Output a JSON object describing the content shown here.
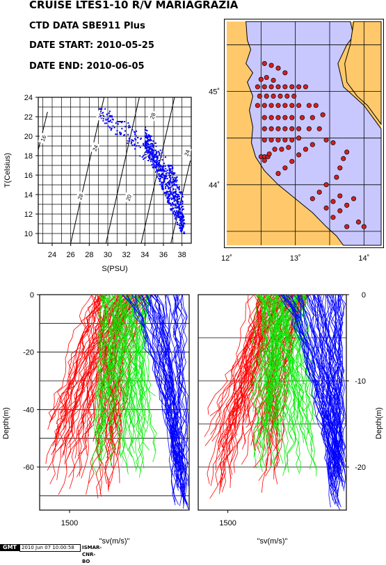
{
  "header": {
    "title": "CRUISE LTES1-10 R/V MARIAGRAZIA",
    "line1": "CTD DATA SBE911 Plus",
    "line2": "DATE START: 2010-05-25",
    "line3": "DATE END:   2010-06-05"
  },
  "footer": {
    "logo_text": "GMT",
    "timestamp": "2010 Jun 07 10:00:58",
    "institute": "ISMAR-CNR-BO"
  },
  "chart_data": [
    {
      "type": "scatter",
      "name_key": "ts_diagram",
      "xlabel": "S(PSU)",
      "ylabel": "T(Celsius)",
      "xlim": [
        22.5,
        39.0
      ],
      "ylim": [
        9.0,
        24.0
      ],
      "xticks": [
        24,
        26,
        28,
        30,
        32,
        34,
        36,
        38
      ],
      "yticks": [
        10,
        12,
        14,
        16,
        18,
        20,
        22,
        24
      ],
      "grid": true,
      "point_color": "#0000ff",
      "isopycnal_labels": [
        "16",
        "20",
        "24",
        "28",
        "20",
        "24",
        "28",
        "20",
        "24",
        "28"
      ],
      "clusters": [
        {
          "s": [
            29,
            31.5
          ],
          "t": [
            20.2,
            22.8
          ],
          "n": 55
        },
        {
          "s": [
            31,
            35
          ],
          "t": [
            17.5,
            21.5
          ],
          "n": 90
        },
        {
          "s": [
            34,
            37.5
          ],
          "t": [
            15,
            20
          ],
          "n": 120
        },
        {
          "s": [
            36.5,
            38.2
          ],
          "t": [
            12.5,
            17
          ],
          "n": 90
        },
        {
          "s": [
            37.5,
            38.3
          ],
          "t": [
            10,
            14
          ],
          "n": 40
        }
      ]
    },
    {
      "type": "map",
      "name_key": "station_map",
      "xlim": [
        12.0,
        14.25
      ],
      "ylim": [
        43.35,
        45.75
      ],
      "xtick_labels": [
        "12˚",
        "13˚",
        "14˚"
      ],
      "xticks": [
        12,
        13,
        14
      ],
      "ytick_labels": [
        "44˚",
        "45˚"
      ],
      "yticks": [
        44,
        45
      ],
      "land_color": "#ffc96b",
      "sea_color": "#c8c8ff",
      "station_color": "#d42020",
      "stations": [
        [
          12.55,
          45.3
        ],
        [
          12.65,
          45.28
        ],
        [
          12.75,
          45.25
        ],
        [
          12.85,
          45.2
        ],
        [
          12.5,
          45.13
        ],
        [
          12.58,
          45.15
        ],
        [
          12.68,
          45.12
        ],
        [
          12.45,
          45.05
        ],
        [
          12.55,
          45.05
        ],
        [
          12.65,
          45.05
        ],
        [
          12.75,
          45.05
        ],
        [
          12.85,
          45.05
        ],
        [
          12.95,
          45.05
        ],
        [
          13.05,
          45.05
        ],
        [
          13.15,
          45.05
        ],
        [
          12.48,
          44.95
        ],
        [
          12.58,
          44.95
        ],
        [
          12.68,
          44.95
        ],
        [
          12.78,
          44.95
        ],
        [
          12.88,
          44.95
        ],
        [
          12.98,
          44.95
        ],
        [
          12.45,
          44.85
        ],
        [
          12.55,
          44.85
        ],
        [
          12.65,
          44.85
        ],
        [
          12.75,
          44.85
        ],
        [
          12.85,
          44.85
        ],
        [
          12.95,
          44.85
        ],
        [
          13.05,
          44.85
        ],
        [
          13.2,
          44.85
        ],
        [
          13.3,
          44.85
        ],
        [
          12.55,
          44.72
        ],
        [
          12.65,
          44.72
        ],
        [
          12.75,
          44.72
        ],
        [
          12.85,
          44.72
        ],
        [
          12.95,
          44.72
        ],
        [
          13.1,
          44.72
        ],
        [
          13.25,
          44.72
        ],
        [
          13.4,
          44.75
        ],
        [
          12.55,
          44.6
        ],
        [
          12.65,
          44.6
        ],
        [
          12.75,
          44.6
        ],
        [
          12.85,
          44.6
        ],
        [
          12.95,
          44.6
        ],
        [
          13.05,
          44.6
        ],
        [
          13.2,
          44.6
        ],
        [
          13.35,
          44.6
        ],
        [
          12.55,
          44.48
        ],
        [
          12.65,
          44.48
        ],
        [
          12.75,
          44.48
        ],
        [
          12.85,
          44.48
        ],
        [
          12.95,
          44.48
        ],
        [
          13.05,
          44.5
        ],
        [
          13.45,
          44.48
        ],
        [
          13.55,
          44.45
        ],
        [
          12.5,
          44.3
        ],
        [
          12.55,
          44.3
        ],
        [
          12.6,
          44.3
        ],
        [
          12.55,
          44.26
        ],
        [
          12.62,
          44.33
        ],
        [
          12.7,
          44.38
        ],
        [
          12.8,
          44.38
        ],
        [
          12.9,
          44.4
        ],
        [
          12.75,
          44.12
        ],
        [
          12.85,
          44.18
        ],
        [
          12.95,
          44.25
        ],
        [
          13.05,
          44.32
        ],
        [
          13.15,
          44.38
        ],
        [
          13.25,
          44.43
        ],
        [
          13.75,
          44.35
        ],
        [
          13.7,
          44.28
        ],
        [
          13.65,
          44.18
        ],
        [
          13.6,
          44.08
        ],
        [
          13.45,
          44.0
        ],
        [
          13.35,
          43.92
        ],
        [
          13.25,
          43.85
        ],
        [
          13.65,
          43.88
        ],
        [
          13.55,
          43.82
        ],
        [
          13.45,
          43.75
        ],
        [
          13.55,
          43.65
        ],
        [
          13.65,
          43.72
        ],
        [
          13.75,
          43.78
        ],
        [
          13.85,
          43.85
        ],
        [
          13.92,
          43.6
        ],
        [
          14.0,
          43.55
        ],
        [
          13.75,
          43.55
        ]
      ]
    },
    {
      "type": "line",
      "name_key": "profile_left",
      "xlabel": "\"sv(m/s)\"",
      "ylabel": "Depth(m)",
      "ylim": [
        -75,
        0
      ],
      "yticks": [
        0,
        -20,
        -40,
        -60
      ],
      "xticks": [
        1500
      ],
      "series": [
        {
          "color": "#ff0000",
          "count": 70
        },
        {
          "color": "#00ee00",
          "count": 60
        },
        {
          "color": "#0000ff",
          "count": 45
        },
        {
          "color": "#d3d3d3",
          "count": 20
        }
      ]
    },
    {
      "type": "line",
      "name_key": "profile_right",
      "xlabel": "\"sv(m/s)\"",
      "ylabel": "Depth(m)",
      "ylim": [
        -25,
        0
      ],
      "yticks": [
        0,
        -10,
        -20
      ],
      "xticks": [
        1500
      ],
      "series": [
        {
          "color": "#ff0000",
          "count": 70
        },
        {
          "color": "#00ee00",
          "count": 65
        },
        {
          "color": "#0000ff",
          "count": 60
        },
        {
          "color": "#d3d3d3",
          "count": 20
        }
      ]
    }
  ]
}
